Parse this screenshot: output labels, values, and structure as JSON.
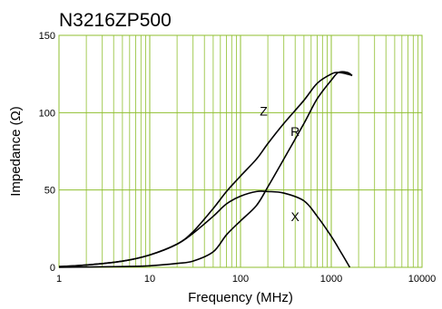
{
  "chart_data": {
    "type": "line",
    "title": "N3216ZP500",
    "xlabel": "Frequency (MHz)",
    "ylabel": "Impedance (Ω)",
    "x_scale": "log",
    "xlim": [
      1,
      10000
    ],
    "ylim": [
      0,
      150
    ],
    "x_ticks": [
      1,
      10,
      100,
      1000,
      10000
    ],
    "x_tick_labels": [
      "1",
      "10",
      "100",
      "1000",
      "10000"
    ],
    "y_ticks": [
      0,
      50,
      100,
      150
    ],
    "y_tick_labels": [
      "0",
      "50",
      "100",
      "150"
    ],
    "grid": true,
    "grid_color": "#8fbf2f",
    "line_color": "#000000",
    "series": [
      {
        "name": "Z",
        "label_at": [
          180,
          98
        ],
        "x": [
          1,
          2,
          5,
          10,
          20,
          30,
          50,
          70,
          100,
          150,
          200,
          300,
          500,
          700,
          1000,
          1200,
          1500,
          1700
        ],
        "y": [
          0.5,
          1.5,
          4,
          8,
          15,
          23,
          38,
          49,
          59,
          70,
          80,
          93,
          108,
          119,
          125,
          126,
          125,
          124
        ]
      },
      {
        "name": "R",
        "label_at": [
          400,
          85
        ],
        "x": [
          1,
          5,
          10,
          20,
          30,
          50,
          70,
          100,
          150,
          200,
          300,
          500,
          700,
          1000,
          1200,
          1500,
          1700
        ],
        "y": [
          0,
          0.5,
          1,
          2.5,
          4,
          10,
          21,
          30,
          40,
          52,
          70,
          93,
          109,
          121,
          126,
          126,
          124
        ]
      },
      {
        "name": "X",
        "label_at": [
          400,
          30
        ],
        "x": [
          1,
          2,
          5,
          10,
          20,
          30,
          50,
          70,
          100,
          150,
          200,
          300,
          500,
          700,
          1000,
          1300,
          1600
        ],
        "y": [
          0.5,
          1.5,
          4,
          8,
          15,
          22,
          33,
          41,
          46,
          49,
          49,
          48,
          43,
          33,
          20,
          9,
          0
        ]
      }
    ]
  }
}
